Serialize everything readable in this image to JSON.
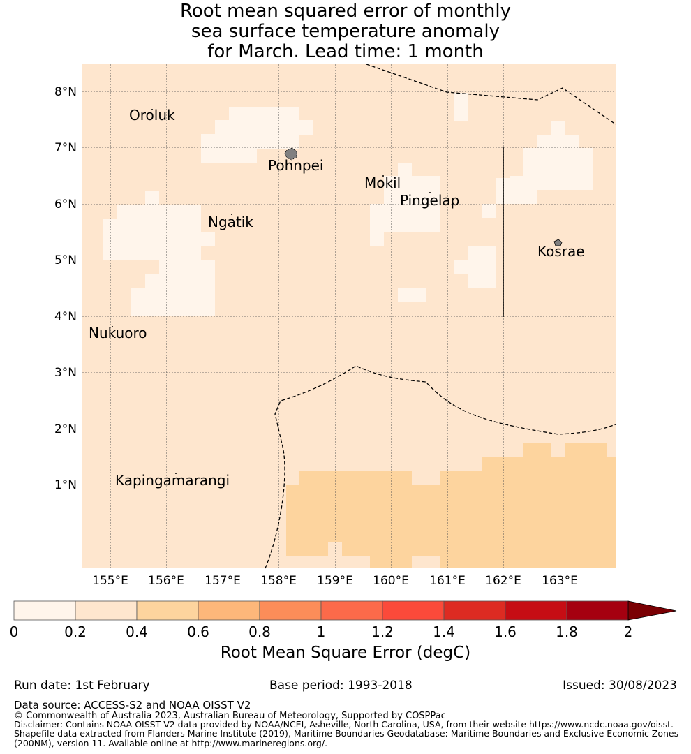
{
  "title": {
    "line1": "Root mean squared error of monthly",
    "line2": "sea surface temperature anomaly",
    "line3": "for March. Lead time: 1 month"
  },
  "map": {
    "lon_ticks": [
      "155°E",
      "156°E",
      "157°E",
      "158°E",
      "159°E",
      "160°E",
      "161°E",
      "162°E",
      "163°E"
    ],
    "lat_ticks": [
      "8°N",
      "7°N",
      "6°N",
      "5°N",
      "4°N",
      "3°N",
      "2°N",
      "1°N"
    ],
    "places": [
      {
        "name": "Oroluk"
      },
      {
        "name": "Pohnpei"
      },
      {
        "name": "Mokil"
      },
      {
        "name": "Pingelap"
      },
      {
        "name": "Ngatik"
      },
      {
        "name": "Kosrae"
      },
      {
        "name": "Nukuoro"
      },
      {
        "name": "Kapingamarangi"
      }
    ],
    "colors": {
      "bin_0_02": "#fff5eb",
      "bin_02_04": "#fee6ce",
      "bin_04_06": "#fdd49e",
      "boundary": "#000000",
      "land": "#808080"
    }
  },
  "colorbar": {
    "ticks": [
      "0",
      "0.2",
      "0.4",
      "0.6",
      "0.8",
      "1",
      "1.2",
      "1.4",
      "1.6",
      "1.8",
      "2"
    ],
    "colors": [
      "#fff5eb",
      "#fee6ce",
      "#fdd49e",
      "#fdb77a",
      "#fc8d59",
      "#fc6a4a",
      "#fb4a3a",
      "#dd2b22",
      "#c60d14",
      "#a50010"
    ],
    "extend_color": "#7a0003",
    "title": "Root Mean Square Error (degC)"
  },
  "footer": {
    "run_date": "Run date: 1st February",
    "base_period": "Base period: 1993-2018",
    "issued": "Issued: 30/08/2023",
    "data_source": "Data source: ACCESS-S2 and NOAA OISST V2",
    "copyright": "© Commonwealth of Australia 2023, Australian Bureau of Meteorology, Supported by COSPPac",
    "disclaimer1": "Disclaimer: Contains NOAA OISST V2 data provided by NOAA/NCEI, Asheville, North Carolina, USA, from their website https://www.ncdc.noaa.gov/oisst.",
    "disclaimer2": "Shapefile data extracted from Flanders Marine Institute (2019), Maritime Boundaries Geodatabase: Maritime Boundaries and Exclusive Economic Zones",
    "disclaimer3": "(200NM), version 11. Available online at http://www.marineregions.org/."
  }
}
